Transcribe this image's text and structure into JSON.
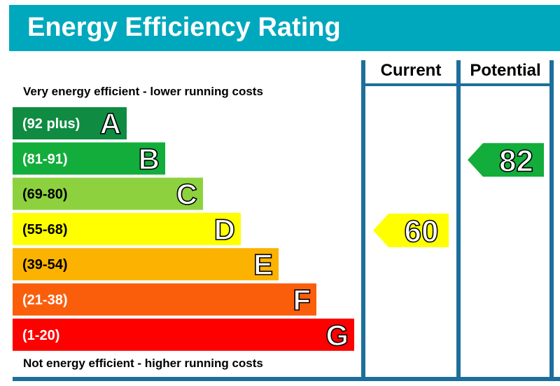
{
  "title": "Energy Efficiency Rating",
  "columns": {
    "current": "Current",
    "potential": "Potential"
  },
  "top_caption": "Very energy efficient - lower running costs",
  "bottom_caption": "Not energy efficient - higher running costs",
  "colors": {
    "title_bar": "#00a8bd",
    "frame": "#1c6f9c",
    "bands": [
      "#008054",
      "#19b459",
      "#8dce46",
      "#ffd500",
      "#fcaa65",
      "#ef8023",
      "#e9153b"
    ]
  },
  "chart_data": {
    "type": "bar",
    "bands": [
      {
        "letter": "A",
        "range": "(92 plus)",
        "color": "#0f8c42",
        "min": 92,
        "max": 100
      },
      {
        "letter": "B",
        "range": "(81-91)",
        "color": "#12ad3b",
        "min": 81,
        "max": 91
      },
      {
        "letter": "C",
        "range": "(69-80)",
        "color": "#8dd23e",
        "min": 69,
        "max": 80
      },
      {
        "letter": "D",
        "range": "(55-68)",
        "color": "#ffff00",
        "min": 55,
        "max": 68
      },
      {
        "letter": "E",
        "range": "(39-54)",
        "color": "#fcb200",
        "min": 39,
        "max": 54
      },
      {
        "letter": "F",
        "range": "(21-38)",
        "color": "#fb5e0b",
        "min": 21,
        "max": 38
      },
      {
        "letter": "G",
        "range": "(1-20)",
        "color": "#ff0000",
        "min": 1,
        "max": 20
      }
    ],
    "current": {
      "value": 60,
      "band": "D",
      "color": "#ffff00"
    },
    "potential": {
      "value": 82,
      "band": "B",
      "color": "#12ad3b"
    }
  }
}
